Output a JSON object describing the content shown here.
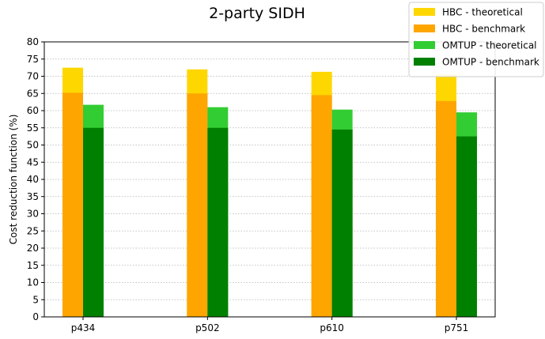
{
  "chart_data": {
    "type": "bar",
    "title": "2-party SIDH",
    "xlabel": "",
    "ylabel": "Cost reduction function (%)",
    "categories": [
      "p434",
      "p502",
      "p610",
      "p751"
    ],
    "ylim": [
      0,
      80
    ],
    "yticks": [
      0,
      5,
      10,
      15,
      20,
      25,
      30,
      35,
      40,
      45,
      50,
      55,
      60,
      65,
      70,
      75,
      80
    ],
    "grid": "horizontal dotted",
    "legend_position": "top-right",
    "series": [
      {
        "name": "HBC - theoretical",
        "color": "#FFD700",
        "values": [
          72.5,
          72.0,
          71.3,
          70.6
        ]
      },
      {
        "name": "HBC - benchmark",
        "color": "#FFA500",
        "values": [
          65.2,
          65.0,
          64.5,
          62.8
        ]
      },
      {
        "name": "OMTUP - theoretical",
        "color": "#32CD32",
        "values": [
          61.7,
          61.0,
          60.3,
          59.5
        ]
      },
      {
        "name": "OMTUP - benchmark",
        "color": "#008000",
        "values": [
          55.0,
          55.0,
          54.5,
          52.5
        ]
      }
    ]
  }
}
